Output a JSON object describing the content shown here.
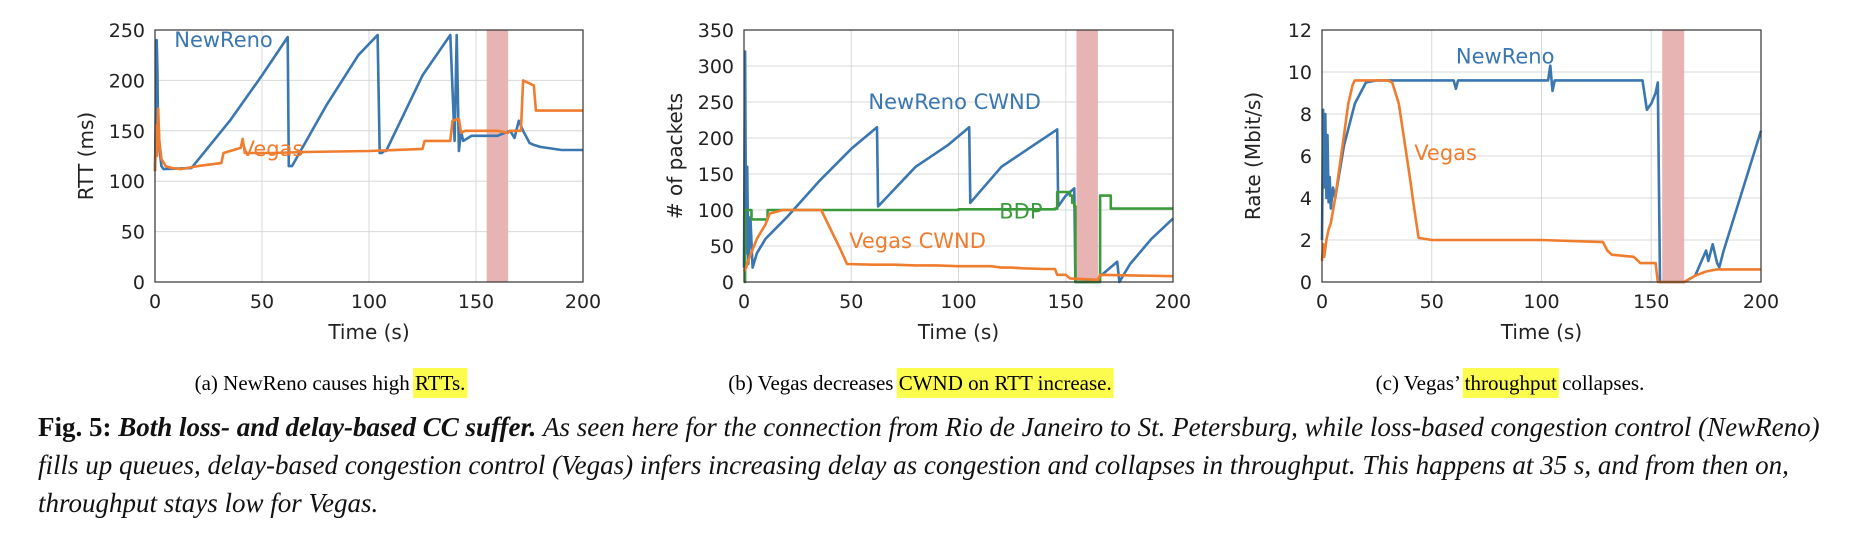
{
  "colors": {
    "newreno": "#3a76b0",
    "vegas": "#f07c2e",
    "bdp": "#3b9a3b",
    "shade": "#e8b3b3",
    "grid": "#d8d8d8",
    "highlight": "#fcfc4e"
  },
  "chart_data": [
    {
      "type": "line",
      "id": "a",
      "xlabel": "Time (s)",
      "ylabel": "RTT (ms)",
      "xlim": [
        0,
        200
      ],
      "ylim": [
        0,
        250
      ],
      "xticks": [
        0,
        50,
        100,
        150,
        200
      ],
      "yticks": [
        0,
        50,
        100,
        150,
        200,
        250
      ],
      "shaded_region": [
        155,
        165
      ],
      "caption": {
        "prefix": "(a)  NewReno causes high ",
        "highlight": "RTTs.",
        "suffix": ""
      },
      "series": [
        {
          "name": "NewReno",
          "color_key": "newreno",
          "label_at": [
            9,
            233
          ],
          "x": [
            0,
            0.8,
            1.1,
            1.4,
            2,
            2.5,
            3,
            4,
            17,
            35,
            50,
            62,
            62.5,
            64,
            80,
            95,
            104,
            105,
            106,
            107,
            108,
            125,
            138,
            140,
            141,
            142,
            143,
            144,
            148,
            150,
            154,
            160,
            166,
            168,
            170,
            172,
            175,
            177,
            180,
            190,
            200
          ],
          "y": [
            110,
            240,
            210,
            160,
            140,
            125,
            115,
            112,
            113,
            160,
            205,
            243,
            115,
            115,
            175,
            225,
            245,
            128,
            128,
            130,
            130,
            205,
            245,
            140,
            245,
            130,
            150,
            140,
            145,
            145,
            145,
            145,
            150,
            143,
            160,
            150,
            138,
            136,
            134,
            131,
            131
          ]
        },
        {
          "name": "Vegas",
          "color_key": "vegas",
          "label_at": [
            40,
            125
          ],
          "x": [
            0,
            0.6,
            1,
            1.5,
            2,
            3,
            5,
            8,
            12,
            20,
            31,
            32,
            40,
            41,
            42,
            55,
            70,
            100,
            125,
            126,
            138,
            139,
            142,
            143,
            145,
            150,
            160,
            165,
            166,
            171,
            172,
            177,
            178,
            180,
            200
          ],
          "y": [
            110,
            155,
            125,
            172,
            140,
            122,
            115,
            113,
            112,
            115,
            118,
            128,
            133,
            142,
            128,
            128,
            129,
            130,
            132,
            140,
            140,
            160,
            162,
            148,
            150,
            150,
            150,
            148,
            150,
            150,
            200,
            195,
            170,
            170,
            170
          ]
        }
      ]
    },
    {
      "type": "line",
      "id": "b",
      "xlabel": "Time (s)",
      "ylabel": "# of packets",
      "xlim": [
        0,
        200
      ],
      "ylim": [
        0,
        350
      ],
      "xticks": [
        0,
        50,
        100,
        150,
        200
      ],
      "yticks": [
        0,
        50,
        100,
        150,
        200,
        250,
        300,
        350
      ],
      "shaded_region": [
        155,
        165
      ],
      "caption": {
        "prefix": "(b)  Vegas decreases ",
        "highlight": "CWND on RTT increase.",
        "suffix": ""
      },
      "series": [
        {
          "name": "NewReno CWND",
          "color_key": "newreno",
          "label_at": [
            58,
            240
          ],
          "x": [
            0,
            0.5,
            1,
            1.5,
            2,
            3,
            4,
            6,
            10,
            20,
            35,
            50,
            62,
            62.5,
            80,
            95,
            105,
            105.5,
            120,
            135,
            146,
            146.5,
            150,
            154,
            154.5,
            165,
            166,
            170,
            174,
            175,
            176,
            180,
            190,
            200
          ],
          "y": [
            20,
            320,
            40,
            160,
            25,
            90,
            20,
            40,
            60,
            90,
            140,
            185,
            215,
            105,
            160,
            190,
            215,
            110,
            160,
            190,
            212,
            105,
            120,
            130,
            0,
            0,
            8,
            18,
            28,
            0,
            5,
            25,
            60,
            88
          ]
        },
        {
          "name": "BDP",
          "color_key": "bdp",
          "label_at": [
            119,
            88
          ],
          "x": [
            0,
            0.5,
            3,
            3.5,
            10,
            11,
            40,
            41,
            100,
            145,
            146,
            152,
            153,
            154,
            154.5,
            165,
            166,
            170,
            171,
            200
          ],
          "y": [
            0,
            100,
            100,
            87,
            87,
            100,
            100,
            100,
            101,
            102,
            125,
            120,
            110,
            105,
            0,
            0,
            120,
            120,
            102,
            102
          ],
          "stepped": true
        },
        {
          "name": "Vegas CWND",
          "color_key": "vegas",
          "label_at": [
            49,
            47
          ],
          "x": [
            0,
            1,
            2,
            4,
            6,
            10,
            12,
            18,
            20,
            25,
            35,
            36,
            45,
            48,
            60,
            70,
            80,
            90,
            100,
            110,
            115,
            120,
            125,
            130,
            140,
            145,
            146,
            150,
            152,
            165,
            166,
            200
          ],
          "y": [
            15,
            20,
            30,
            45,
            60,
            80,
            95,
            100,
            100,
            100,
            100,
            100,
            45,
            25,
            24,
            24,
            23,
            23,
            22,
            22,
            22,
            20,
            20,
            19,
            18,
            18,
            10,
            10,
            5,
            3,
            10,
            8
          ]
        }
      ]
    },
    {
      "type": "line",
      "id": "c",
      "xlabel": "Time (s)",
      "ylabel": "Rate (Mbit/s)",
      "xlim": [
        0,
        200
      ],
      "ylim": [
        0,
        12
      ],
      "xticks": [
        0,
        50,
        100,
        150,
        200
      ],
      "yticks": [
        0,
        2,
        4,
        6,
        8,
        10,
        12
      ],
      "shaded_region": [
        155,
        165
      ],
      "caption": {
        "prefix": "(c)  Vegas’ ",
        "highlight": "throughput",
        "suffix": " collapses."
      },
      "series": [
        {
          "name": "NewReno",
          "color_key": "newreno",
          "label_at": [
            61,
            10.4
          ],
          "x": [
            0,
            0.5,
            1,
            1.5,
            2,
            2.5,
            3,
            3.5,
            4,
            5,
            6,
            10,
            15,
            20,
            25,
            30,
            35,
            60,
            61,
            62,
            100,
            103,
            104,
            105,
            106,
            107,
            108,
            145,
            146,
            148,
            150,
            152,
            153,
            154,
            155,
            165,
            170,
            175,
            176,
            178,
            180,
            181,
            183,
            200
          ],
          "y": [
            2,
            8.2,
            4.5,
            8,
            4,
            7,
            3.8,
            5,
            3.5,
            4.5,
            4,
            6.5,
            8.5,
            9.5,
            9.6,
            9.6,
            9.6,
            9.6,
            9.2,
            9.6,
            9.6,
            9.6,
            10.3,
            9.1,
            9.6,
            9.6,
            9.6,
            9.6,
            9.6,
            8.2,
            8.5,
            9,
            9.5,
            0,
            0,
            0,
            0.3,
            1.5,
            1.0,
            1.8,
            0.9,
            0.7,
            1.5,
            7.2
          ]
        },
        {
          "name": "Vegas",
          "color_key": "vegas",
          "label_at": [
            42,
            5.8
          ],
          "x": [
            0,
            0.5,
            1,
            2,
            3,
            4,
            6,
            8,
            10,
            12,
            14,
            15,
            20,
            25,
            30,
            32,
            35,
            40,
            42,
            44,
            50,
            80,
            100,
            128,
            130,
            132,
            142,
            145,
            146,
            150,
            152,
            153,
            155,
            165,
            170,
            175,
            180,
            200
          ],
          "y": [
            1,
            1.8,
            1.2,
            2,
            2.5,
            2.8,
            4,
            5.5,
            7,
            8.5,
            9.4,
            9.6,
            9.6,
            9.6,
            9.6,
            9.5,
            8.5,
            5,
            3.5,
            2.1,
            2,
            2,
            2,
            1.9,
            1.5,
            1.3,
            1.2,
            0.9,
            0.9,
            0.9,
            0.9,
            0,
            0,
            0,
            0.3,
            0.5,
            0.6,
            0.6
          ]
        }
      ]
    }
  ],
  "caption": {
    "label": "Fig. 5:",
    "title": "Both loss- and delay-based CC suffer.",
    "body": "As seen here for the connection from Rio de Janeiro to St. Petersburg, while loss-based congestion control (NewReno) fills up queues, delay-based congestion control (Vegas) infers increasing delay as congestion and collapses in throughput. This happens at 35 s, and from then on, throughput stays low for Vegas."
  }
}
